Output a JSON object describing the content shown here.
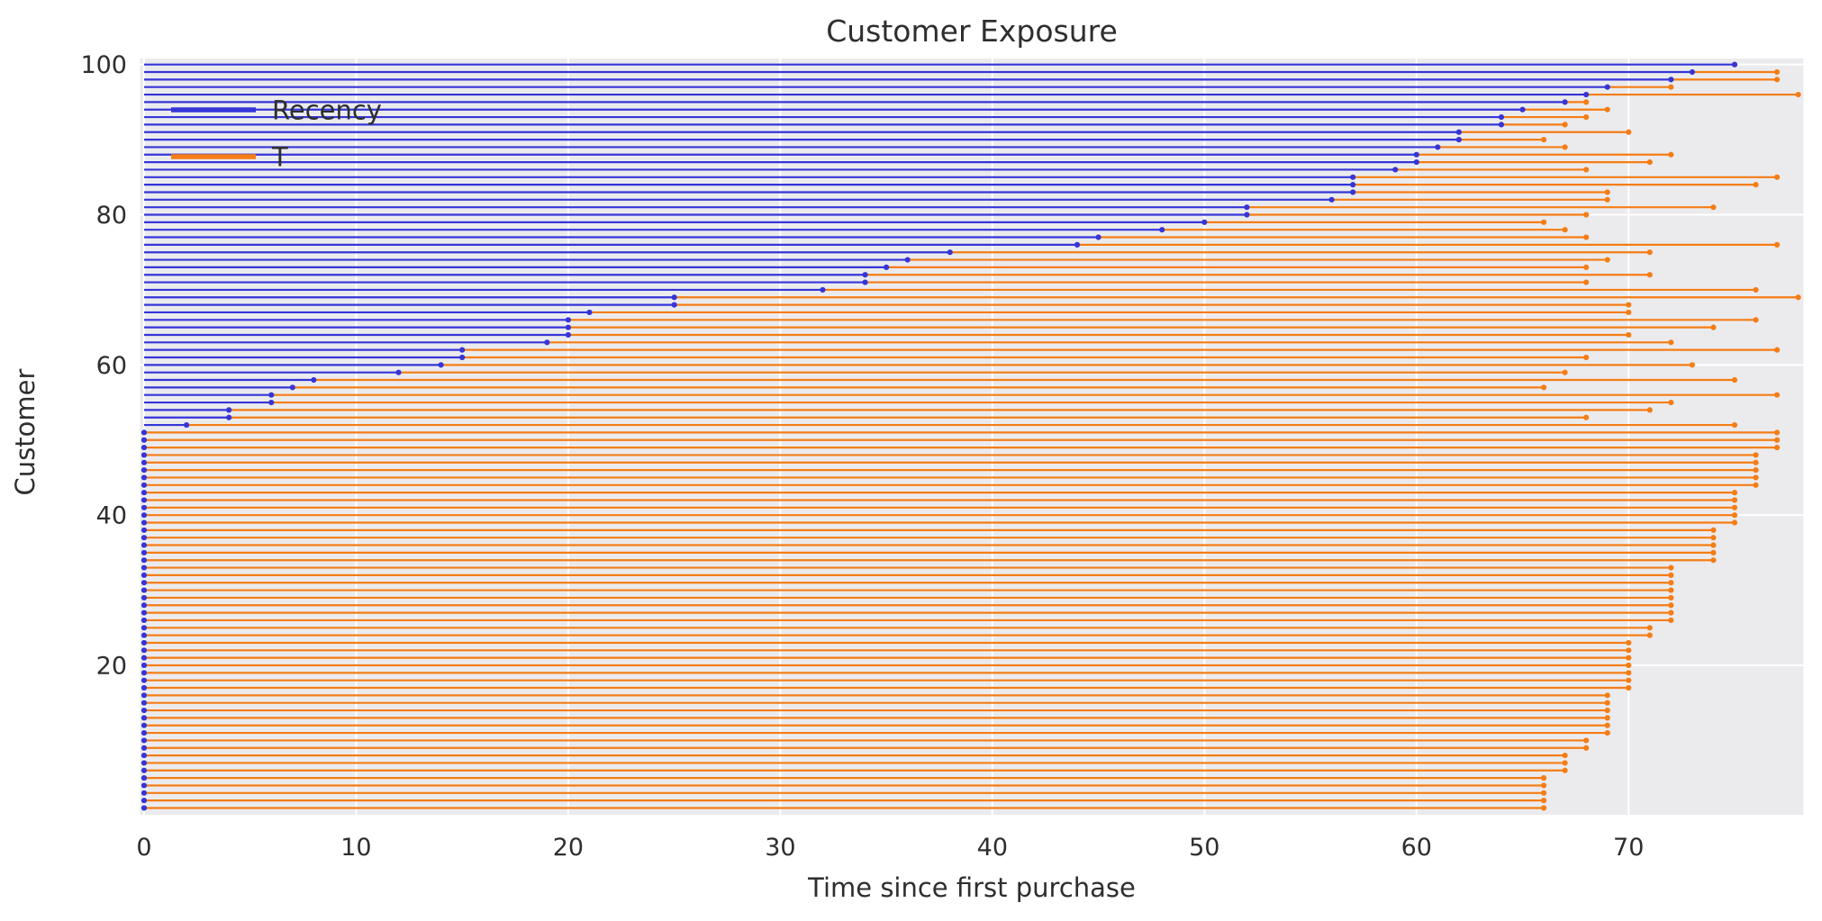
{
  "style": {
    "figure_bg": "#ffffff",
    "axes_bg": "#ebebee",
    "grid_color": "#ffffff",
    "text_color": "#2e2e2e",
    "recency_color": "#3535d8",
    "t_color": "#f57d15"
  },
  "chart_data": {
    "type": "line",
    "variant": "horizontal-lollipop (customer exposure stems)",
    "title": "Customer Exposure",
    "xlabel": "Time since first purchase",
    "ylabel": "Customer",
    "xlim": [
      -0.19,
      78.25
    ],
    "ylim": [
      0.1,
      100.8
    ],
    "xticks": [
      0,
      10,
      20,
      30,
      40,
      50,
      60,
      70
    ],
    "yticks": [
      20,
      40,
      60,
      80,
      100
    ],
    "grid": true,
    "legend_position": "upper left",
    "n_customers": 100,
    "sorted_by": "recency ascending",
    "series": [
      {
        "name": "Recency",
        "color": "#3535d8",
        "values": [
          0,
          0,
          0,
          0,
          0,
          0,
          0,
          0,
          0,
          0,
          0,
          0,
          0,
          0,
          0,
          0,
          0,
          0,
          0,
          0,
          0,
          0,
          0,
          0,
          0,
          0,
          0,
          0,
          0,
          0,
          0,
          0,
          0,
          0,
          0,
          0,
          0,
          0,
          0,
          0,
          0,
          0,
          0,
          0,
          0,
          0,
          0,
          0,
          0,
          0,
          0,
          2,
          4,
          4,
          6,
          6,
          7,
          8,
          12,
          14,
          15,
          15,
          19,
          20,
          20,
          20,
          21,
          25,
          25,
          32,
          34,
          34,
          35,
          36,
          38,
          44,
          45,
          48,
          50,
          52,
          52,
          56,
          57,
          57,
          57,
          59,
          60,
          60,
          61,
          62,
          62,
          64,
          64,
          65,
          67,
          68,
          69,
          72,
          73,
          75
        ]
      },
      {
        "name": "T",
        "color": "#f57d15",
        "values": [
          66,
          66,
          66,
          66,
          66,
          67,
          67,
          67,
          68,
          68,
          69,
          69,
          69,
          69,
          69,
          69,
          70,
          70,
          70,
          70,
          70,
          70,
          70,
          71,
          71,
          72,
          72,
          72,
          72,
          72,
          72,
          72,
          72,
          74,
          74,
          74,
          74,
          74,
          75,
          75,
          75,
          75,
          75,
          76,
          76,
          76,
          76,
          76,
          77,
          77,
          77,
          75,
          68,
          71,
          72,
          77,
          66,
          75,
          67,
          73,
          68,
          77,
          72,
          70,
          74,
          76,
          70,
          70,
          78,
          76,
          68,
          71,
          68,
          69,
          71,
          77,
          68,
          67,
          66,
          68,
          74,
          69,
          69,
          76,
          77,
          68,
          71,
          72,
          67,
          66,
          70,
          67,
          68,
          69,
          68,
          78,
          72,
          77,
          77,
          75
        ]
      }
    ]
  }
}
